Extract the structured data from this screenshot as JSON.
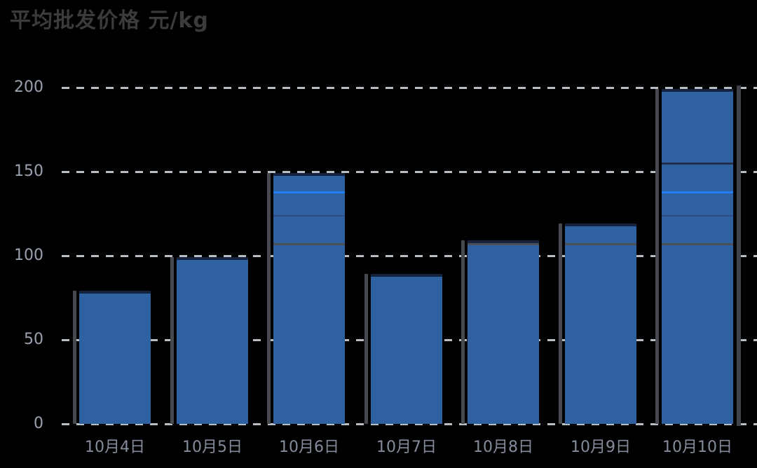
{
  "title": {
    "text": "平均批发价格 元/kg"
  },
  "colors": {
    "bar_fill": "#2f61a1",
    "bar_top_cap": "#15223b",
    "gridline": "#c9ced6",
    "y_tick_label": "#9aa2b0",
    "x_tick_label": "#848c9c",
    "title_text": "#3b3b3b",
    "reference_gray": "#4a4e55",
    "reference_bright_blue": "#1f7df5",
    "reference_dark_blue": "#2a4d86",
    "reference_navy": "#22304a",
    "background": "#000000"
  },
  "chart_data": {
    "type": "bar",
    "title": "平均批发价格 元/kg",
    "categories": [
      "10月4日",
      "10月5日",
      "10月6日",
      "10月7日",
      "10月8日",
      "10月9日",
      "10月10日"
    ],
    "values": [
      80,
      100,
      150,
      90,
      110,
      120,
      200
    ],
    "xlabel": "",
    "ylabel": "",
    "y_ticks": [
      0,
      50,
      100,
      150,
      200
    ],
    "y_tick_labels": [
      "0",
      "50",
      "100",
      "150",
      "200"
    ],
    "ylim": [
      0,
      200
    ],
    "grid": "horizontal dashed, every 50",
    "legend": "none",
    "reference_lines": [
      {
        "value": 107,
        "color": "#4a4e55",
        "thickness": 3
      },
      {
        "value": 124,
        "color": "#2a4d86",
        "thickness": 2
      },
      {
        "value": 138,
        "color": "#1f7df5",
        "thickness": 3
      },
      {
        "value": 155,
        "color": "#22304a",
        "thickness": 3
      }
    ]
  }
}
